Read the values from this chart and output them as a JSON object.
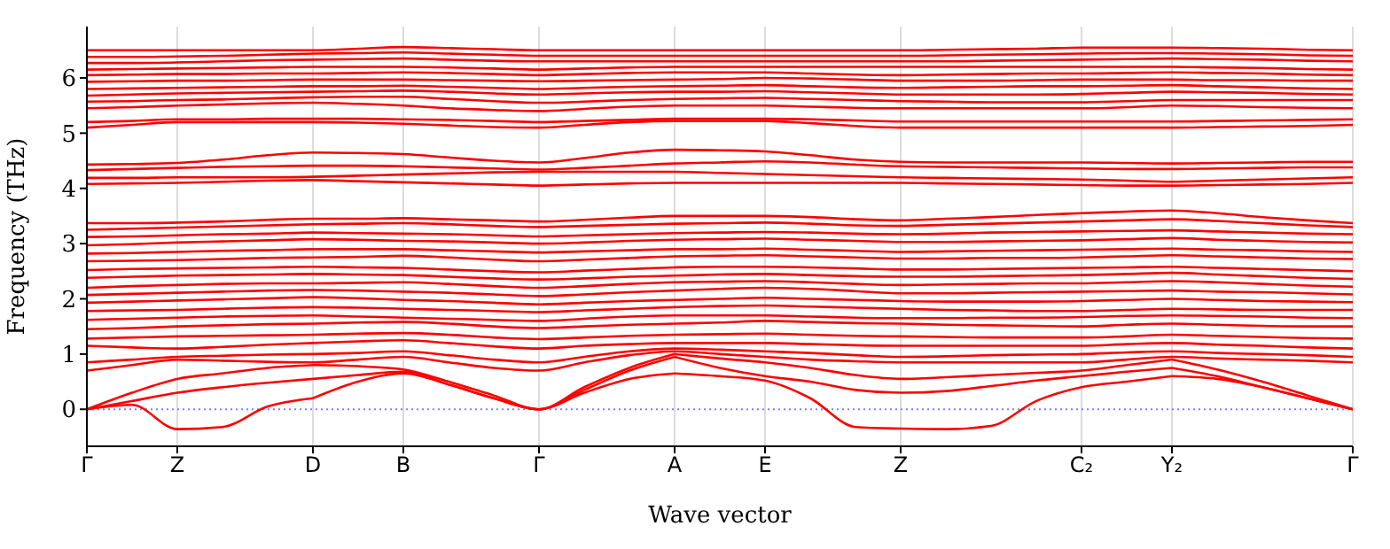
{
  "chart_data": {
    "type": "line",
    "xlabel": "Wave vector",
    "ylabel": "Frequency (THz)",
    "categories": [
      "Γ",
      null,
      "Z",
      null,
      null,
      "D",
      null,
      "B",
      null,
      null,
      "Γ",
      null,
      null,
      "A",
      null,
      "E",
      null,
      null,
      "Z",
      null,
      null,
      null,
      "C₂",
      null,
      "Y₂",
      null,
      null,
      null,
      "Γ"
    ],
    "ylim": [
      -0.67,
      6.93
    ],
    "yticks": [
      0,
      1,
      2,
      3,
      4,
      5,
      6
    ],
    "grid": "x",
    "marker": "none",
    "line_style": "solid",
    "ref_lines": [
      {
        "axis": "y",
        "value": 0,
        "color": "#7f7fff",
        "line_style": "dotted"
      }
    ],
    "series": [
      {
        "color": "#ff0000",
        "values": [
          0,
          0.08,
          -0.36,
          -0.32,
          0.05,
          0.2,
          null,
          null,
          null,
          null,
          null,
          null,
          null,
          null,
          null,
          null,
          null,
          null,
          null,
          null,
          null,
          null,
          null,
          null,
          null,
          null,
          null,
          null,
          null
        ]
      },
      {
        "color": "#ff0000",
        "values": [
          null,
          null,
          null,
          null,
          null,
          0.2,
          0.5,
          0.65,
          0.45,
          0.2,
          0,
          0.3,
          0.55,
          0.65,
          null,
          null,
          null,
          null,
          null,
          null,
          null,
          null,
          null,
          null,
          null,
          null,
          null,
          null,
          null
        ]
      },
      {
        "color": "#ff0000",
        "values": [
          null,
          null,
          null,
          null,
          null,
          null,
          null,
          null,
          null,
          null,
          null,
          null,
          null,
          0.65,
          0.6,
          0.52,
          0.2,
          -0.32,
          -0.35,
          -0.36,
          -0.3,
          0.15,
          0.4,
          0.5,
          0.6,
          null,
          null,
          null,
          null
        ]
      },
      {
        "color": "#ff0000",
        "values": [
          null,
          null,
          null,
          null,
          null,
          null,
          null,
          null,
          null,
          null,
          null,
          null,
          null,
          null,
          null,
          null,
          null,
          null,
          null,
          null,
          null,
          null,
          null,
          null,
          0.6,
          0.55,
          0.4,
          0.2,
          0
        ]
      },
      {
        "color": "#ff0000",
        "values": [
          0,
          0.15,
          0.3,
          0.4,
          0.48,
          0.55,
          null,
          null,
          null,
          null,
          null,
          null,
          null,
          null,
          null,
          null,
          null,
          null,
          null,
          null,
          null,
          null,
          null,
          null,
          null,
          null,
          null,
          null,
          null
        ]
      },
      {
        "color": "#ff0000",
        "values": [
          null,
          null,
          null,
          null,
          null,
          0.55,
          0.62,
          0.68,
          0.45,
          0.2,
          0,
          0.35,
          0.7,
          0.95,
          null,
          null,
          null,
          null,
          null,
          null,
          null,
          null,
          null,
          null,
          null,
          null,
          null,
          null,
          null
        ]
      },
      {
        "color": "#ff0000",
        "values": [
          null,
          null,
          null,
          null,
          null,
          null,
          null,
          null,
          null,
          null,
          null,
          null,
          null,
          0.95,
          0.75,
          0.6,
          0.5,
          0.35,
          0.3,
          0.33,
          0.42,
          0.52,
          0.6,
          0.68,
          0.75,
          null,
          null,
          null,
          null
        ]
      },
      {
        "color": "#ff0000",
        "values": [
          null,
          null,
          null,
          null,
          null,
          null,
          null,
          null,
          null,
          null,
          null,
          null,
          null,
          null,
          null,
          null,
          null,
          null,
          null,
          null,
          null,
          null,
          null,
          null,
          0.75,
          0.6,
          0.4,
          0.2,
          0
        ]
      },
      {
        "color": "#ff0000",
        "values": [
          0,
          0.3,
          0.55,
          0.65,
          0.75,
          0.8,
          null,
          null,
          null,
          null,
          null,
          null,
          null,
          null,
          null,
          null,
          null,
          null,
          null,
          null,
          null,
          null,
          null,
          null,
          null,
          null,
          null,
          null,
          null
        ]
      },
      {
        "color": "#ff0000",
        "values": [
          null,
          null,
          null,
          null,
          null,
          0.8,
          0.78,
          0.72,
          0.5,
          0.25,
          0,
          0.4,
          0.75,
          1.0,
          null,
          null,
          null,
          null,
          null,
          null,
          null,
          null,
          null,
          null,
          null,
          null,
          null,
          null,
          null
        ]
      },
      {
        "color": "#ff0000",
        "values": [
          null,
          null,
          null,
          null,
          null,
          null,
          null,
          null,
          null,
          null,
          null,
          null,
          null,
          1.0,
          0.92,
          0.85,
          0.75,
          0.62,
          0.55,
          0.58,
          0.62,
          0.66,
          0.7,
          0.8,
          0.9,
          null,
          null,
          null,
          null
        ]
      },
      {
        "color": "#ff0000",
        "values": [
          null,
          null,
          null,
          null,
          null,
          null,
          null,
          null,
          null,
          null,
          null,
          null,
          null,
          null,
          null,
          null,
          null,
          null,
          null,
          null,
          null,
          null,
          null,
          null,
          0.9,
          0.72,
          0.5,
          0.25,
          0
        ]
      },
      {
        "color": "#ff0000",
        "values": [
          0.7,
          0.8,
          0.9,
          0.88,
          0.86,
          0.85,
          0.9,
          0.95,
          0.85,
          0.75,
          0.7,
          0.85,
          0.98,
          1.05,
          1.0,
          0.95,
          0.9,
          0.87,
          0.85,
          0.85,
          0.85,
          0.85,
          0.85,
          0.9,
          0.95,
          0.92,
          0.9,
          0.88,
          0.85
        ]
      },
      {
        "color": "#ff0000",
        "values": [
          0.85,
          0.9,
          0.95,
          0.97,
          0.99,
          1.0,
          1.02,
          1.05,
          0.98,
          0.9,
          0.85,
          0.95,
          1.05,
          1.1,
          1.08,
          1.05,
          1.02,
          0.98,
          0.95,
          0.96,
          0.98,
          0.99,
          1.0,
          1.03,
          1.05,
          1.02,
          1.0,
          0.98,
          0.95
        ]
      },
      {
        "color": "#ff0000",
        "values": [
          1.15,
          1.12,
          1.1,
          1.13,
          1.17,
          1.2,
          1.23,
          1.25,
          1.2,
          1.14,
          1.1,
          1.15,
          1.18,
          1.2,
          1.2,
          1.2,
          1.18,
          1.16,
          1.15,
          1.15,
          1.15,
          1.15,
          1.15,
          1.18,
          1.2,
          1.17,
          1.15,
          1.12,
          1.1
        ]
      },
      {
        "color": "#ff0000",
        "values": [
          1.28,
          1.3,
          1.32,
          1.33,
          1.34,
          1.35,
          1.37,
          1.38,
          1.35,
          1.3,
          1.27,
          1.3,
          1.33,
          1.35,
          1.36,
          1.37,
          1.35,
          1.33,
          1.32,
          1.31,
          1.3,
          1.3,
          1.3,
          1.32,
          1.35,
          1.33,
          1.31,
          1.29,
          1.28
        ]
      },
      {
        "color": "#ff0000",
        "values": [
          1.45,
          1.47,
          1.5,
          1.52,
          1.54,
          1.55,
          1.57,
          1.58,
          1.55,
          1.5,
          1.47,
          1.5,
          1.53,
          1.55,
          1.57,
          1.6,
          1.58,
          1.56,
          1.55,
          1.53,
          1.52,
          1.51,
          1.5,
          1.53,
          1.55,
          1.53,
          1.51,
          1.5,
          1.5
        ]
      },
      {
        "color": "#ff0000",
        "values": [
          1.62,
          1.64,
          1.66,
          1.68,
          1.69,
          1.7,
          1.68,
          1.66,
          1.64,
          1.62,
          1.6,
          1.64,
          1.68,
          1.7,
          1.7,
          1.7,
          1.68,
          1.66,
          1.65,
          1.65,
          1.66,
          1.66,
          1.67,
          1.69,
          1.7,
          1.69,
          1.68,
          1.66,
          1.65
        ]
      },
      {
        "color": "#ff0000",
        "values": [
          1.78,
          1.79,
          1.8,
          1.82,
          1.84,
          1.85,
          1.84,
          1.82,
          1.8,
          1.78,
          1.76,
          1.79,
          1.82,
          1.85,
          1.87,
          1.88,
          1.86,
          1.84,
          1.82,
          1.8,
          1.79,
          1.78,
          1.78,
          1.8,
          1.82,
          1.81,
          1.8,
          1.8,
          1.8
        ]
      },
      {
        "color": "#ff0000",
        "values": [
          1.93,
          1.95,
          1.97,
          1.99,
          2.01,
          2.03,
          2.01,
          1.98,
          1.96,
          1.93,
          1.9,
          1.93,
          1.96,
          1.98,
          2.0,
          2.02,
          2.0,
          1.98,
          1.96,
          1.95,
          1.95,
          1.95,
          1.96,
          1.98,
          2.0,
          1.98,
          1.96,
          1.95,
          1.94
        ]
      },
      {
        "color": "#ff0000",
        "values": [
          2.07,
          2.09,
          2.11,
          2.13,
          2.15,
          2.16,
          2.15,
          2.13,
          2.11,
          2.08,
          2.05,
          2.08,
          2.12,
          2.15,
          2.18,
          2.2,
          2.18,
          2.14,
          2.1,
          2.1,
          2.11,
          2.12,
          2.13,
          2.14,
          2.15,
          2.13,
          2.12,
          2.1,
          2.08
        ]
      },
      {
        "color": "#ff0000",
        "values": [
          2.2,
          2.23,
          2.25,
          2.27,
          2.28,
          2.28,
          2.29,
          2.3,
          2.27,
          2.23,
          2.2,
          2.23,
          2.27,
          2.3,
          2.31,
          2.32,
          2.3,
          2.27,
          2.25,
          2.26,
          2.27,
          2.28,
          2.28,
          2.3,
          2.32,
          2.3,
          2.27,
          2.24,
          2.22
        ]
      },
      {
        "color": "#ff0000",
        "values": [
          2.38,
          2.4,
          2.42,
          2.43,
          2.44,
          2.45,
          2.44,
          2.43,
          2.4,
          2.37,
          2.35,
          2.37,
          2.4,
          2.42,
          2.44,
          2.45,
          2.43,
          2.41,
          2.4,
          2.4,
          2.41,
          2.42,
          2.43,
          2.45,
          2.47,
          2.44,
          2.41,
          2.38,
          2.36
        ]
      },
      {
        "color": "#ff0000",
        "values": [
          2.52,
          2.54,
          2.55,
          2.56,
          2.57,
          2.58,
          2.57,
          2.56,
          2.53,
          2.5,
          2.48,
          2.51,
          2.54,
          2.57,
          2.58,
          2.58,
          2.57,
          2.55,
          2.53,
          2.53,
          2.54,
          2.55,
          2.56,
          2.57,
          2.58,
          2.56,
          2.54,
          2.52,
          2.5
        ]
      },
      {
        "color": "#ff0000",
        "values": [
          2.68,
          2.69,
          2.7,
          2.72,
          2.74,
          2.75,
          2.76,
          2.78,
          2.75,
          2.71,
          2.68,
          2.71,
          2.74,
          2.77,
          2.78,
          2.79,
          2.77,
          2.75,
          2.73,
          2.73,
          2.74,
          2.74,
          2.75,
          2.77,
          2.79,
          2.77,
          2.75,
          2.73,
          2.72
        ]
      },
      {
        "color": "#ff0000",
        "values": [
          2.82,
          2.83,
          2.85,
          2.87,
          2.88,
          2.9,
          2.9,
          2.9,
          2.88,
          2.86,
          2.84,
          2.86,
          2.88,
          2.9,
          2.9,
          2.91,
          2.89,
          2.87,
          2.85,
          2.86,
          2.87,
          2.88,
          2.89,
          2.9,
          2.91,
          2.89,
          2.88,
          2.86,
          2.85
        ]
      },
      {
        "color": "#ff0000",
        "values": [
          2.97,
          2.99,
          3.02,
          3.04,
          3.06,
          3.08,
          3.07,
          3.05,
          3.04,
          3.02,
          3.0,
          3.02,
          3.05,
          3.07,
          3.08,
          3.09,
          3.07,
          3.05,
          3.03,
          3.03,
          3.04,
          3.05,
          3.06,
          3.08,
          3.1,
          3.07,
          3.05,
          3.03,
          3.02
        ]
      },
      {
        "color": "#ff0000",
        "values": [
          3.12,
          3.13,
          3.15,
          3.17,
          3.18,
          3.2,
          3.19,
          3.18,
          3.17,
          3.15,
          3.13,
          3.15,
          3.17,
          3.19,
          3.2,
          3.21,
          3.2,
          3.18,
          3.17,
          3.18,
          3.2,
          3.21,
          3.22,
          3.23,
          3.24,
          3.22,
          3.2,
          3.18,
          3.17
        ]
      },
      {
        "color": "#ff0000",
        "values": [
          3.25,
          3.27,
          3.29,
          3.31,
          3.33,
          3.35,
          3.36,
          3.37,
          3.35,
          3.32,
          3.3,
          3.32,
          3.34,
          3.36,
          3.37,
          3.38,
          3.36,
          3.33,
          3.32,
          3.34,
          3.36,
          3.38,
          3.4,
          3.42,
          3.44,
          3.41,
          3.37,
          3.33,
          3.3
        ]
      },
      {
        "color": "#ff0000",
        "values": [
          3.37,
          3.37,
          3.38,
          3.4,
          3.43,
          3.45,
          3.45,
          3.46,
          3.44,
          3.42,
          3.4,
          3.43,
          3.47,
          3.5,
          3.5,
          3.5,
          3.48,
          3.44,
          3.42,
          3.45,
          3.48,
          3.52,
          3.55,
          3.58,
          3.6,
          3.55,
          3.48,
          3.42,
          3.37
        ]
      },
      {
        "color": "#ff0000",
        "values": [
          4.08,
          4.09,
          4.1,
          4.12,
          4.14,
          4.15,
          4.13,
          4.11,
          4.09,
          4.07,
          4.05,
          4.07,
          4.09,
          4.1,
          4.1,
          4.1,
          4.1,
          4.1,
          4.1,
          4.09,
          4.08,
          4.07,
          4.06,
          4.05,
          4.05,
          4.06,
          4.07,
          4.08,
          4.1
        ]
      },
      {
        "color": "#ff0000",
        "values": [
          4.19,
          4.19,
          4.2,
          4.2,
          4.2,
          4.21,
          4.23,
          4.25,
          4.27,
          4.29,
          4.3,
          4.3,
          4.3,
          4.3,
          4.28,
          4.26,
          4.24,
          4.22,
          4.2,
          4.19,
          4.18,
          4.17,
          4.16,
          4.14,
          4.12,
          4.14,
          4.16,
          4.18,
          4.2
        ]
      },
      {
        "color": "#ff0000",
        "values": [
          4.33,
          4.35,
          4.37,
          4.39,
          4.4,
          4.41,
          4.41,
          4.4,
          4.38,
          4.36,
          4.34,
          4.37,
          4.41,
          4.45,
          4.47,
          4.49,
          4.47,
          4.43,
          4.4,
          4.39,
          4.38,
          4.37,
          4.36,
          4.35,
          4.35,
          4.36,
          4.37,
          4.38,
          4.38
        ]
      },
      {
        "color": "#ff0000",
        "values": [
          4.43,
          4.44,
          4.46,
          4.52,
          4.6,
          4.65,
          4.64,
          4.62,
          4.56,
          4.5,
          4.47,
          4.55,
          4.65,
          4.7,
          4.69,
          4.67,
          4.6,
          4.52,
          4.48,
          4.47,
          4.47,
          4.47,
          4.47,
          4.46,
          4.45,
          4.46,
          4.47,
          4.48,
          4.48
        ]
      },
      {
        "color": "#ff0000",
        "values": [
          5.1,
          5.15,
          5.2,
          5.2,
          5.2,
          5.2,
          5.19,
          5.17,
          5.14,
          5.11,
          5.1,
          5.15,
          5.2,
          5.22,
          5.22,
          5.22,
          5.18,
          5.13,
          5.1,
          5.1,
          5.1,
          5.1,
          5.1,
          5.1,
          5.1,
          5.11,
          5.12,
          5.13,
          5.15
        ]
      },
      {
        "color": "#ff0000",
        "values": [
          5.2,
          5.22,
          5.25,
          5.25,
          5.26,
          5.26,
          5.26,
          5.25,
          5.24,
          5.22,
          5.2,
          5.22,
          5.24,
          5.26,
          5.26,
          5.26,
          5.25,
          5.23,
          5.21,
          5.21,
          5.21,
          5.21,
          5.21,
          5.21,
          5.21,
          5.22,
          5.23,
          5.24,
          5.25
        ]
      },
      {
        "color": "#ff0000",
        "values": [
          5.45,
          5.47,
          5.5,
          5.52,
          5.54,
          5.55,
          5.53,
          5.5,
          5.45,
          5.42,
          5.4,
          5.44,
          5.48,
          5.5,
          5.5,
          5.5,
          5.48,
          5.46,
          5.45,
          5.45,
          5.45,
          5.45,
          5.45,
          5.47,
          5.5,
          5.49,
          5.47,
          5.46,
          5.45
        ]
      },
      {
        "color": "#ff0000",
        "values": [
          5.57,
          5.58,
          5.6,
          5.61,
          5.63,
          5.65,
          5.66,
          5.66,
          5.62,
          5.58,
          5.55,
          5.57,
          5.6,
          5.62,
          5.63,
          5.64,
          5.62,
          5.6,
          5.58,
          5.57,
          5.56,
          5.56,
          5.56,
          5.58,
          5.6,
          5.6,
          5.6,
          5.6,
          5.6
        ]
      },
      {
        "color": "#ff0000",
        "values": [
          5.68,
          5.7,
          5.72,
          5.73,
          5.74,
          5.75,
          5.76,
          5.77,
          5.75,
          5.72,
          5.7,
          5.72,
          5.74,
          5.75,
          5.75,
          5.76,
          5.74,
          5.72,
          5.7,
          5.7,
          5.7,
          5.7,
          5.71,
          5.73,
          5.75,
          5.74,
          5.73,
          5.71,
          5.7
        ]
      },
      {
        "color": "#ff0000",
        "values": [
          5.8,
          5.81,
          5.82,
          5.83,
          5.84,
          5.85,
          5.85,
          5.86,
          5.84,
          5.82,
          5.8,
          5.82,
          5.84,
          5.85,
          5.86,
          5.87,
          5.85,
          5.83,
          5.82,
          5.83,
          5.84,
          5.85,
          5.85,
          5.86,
          5.87,
          5.85,
          5.83,
          5.81,
          5.8
        ]
      },
      {
        "color": "#ff0000",
        "values": [
          5.93,
          5.94,
          5.95,
          5.95,
          5.96,
          5.97,
          5.97,
          5.97,
          5.96,
          5.95,
          5.94,
          5.95,
          5.96,
          5.97,
          5.98,
          6.0,
          5.99,
          5.97,
          5.95,
          5.95,
          5.95,
          5.96,
          5.97,
          5.97,
          5.97,
          5.96,
          5.96,
          5.95,
          5.95
        ]
      },
      {
        "color": "#ff0000",
        "values": [
          6.05,
          6.06,
          6.07,
          6.07,
          6.08,
          6.08,
          6.09,
          6.1,
          6.09,
          6.07,
          6.05,
          6.07,
          6.09,
          6.1,
          6.1,
          6.1,
          6.08,
          6.06,
          6.05,
          6.06,
          6.07,
          6.08,
          6.08,
          6.09,
          6.1,
          6.09,
          6.08,
          6.06,
          6.05
        ]
      },
      {
        "color": "#ff0000",
        "values": [
          6.15,
          6.16,
          6.17,
          6.18,
          6.19,
          6.2,
          6.2,
          6.2,
          6.19,
          6.17,
          6.15,
          6.17,
          6.19,
          6.2,
          6.2,
          6.2,
          6.2,
          6.2,
          6.2,
          6.2,
          6.2,
          6.2,
          6.2,
          6.2,
          6.2,
          6.19,
          6.18,
          6.16,
          6.15
        ]
      },
      {
        "color": "#ff0000",
        "values": [
          6.27,
          6.27,
          6.28,
          6.3,
          6.32,
          6.33,
          6.34,
          6.35,
          6.33,
          6.31,
          6.3,
          6.3,
          6.3,
          6.3,
          6.3,
          6.3,
          6.3,
          6.3,
          6.3,
          6.3,
          6.31,
          6.32,
          6.33,
          6.34,
          6.35,
          6.34,
          6.33,
          6.31,
          6.3
        ]
      },
      {
        "color": "#ff0000",
        "values": [
          6.38,
          6.38,
          6.39,
          6.4,
          6.42,
          6.44,
          6.45,
          6.46,
          6.44,
          6.42,
          6.4,
          6.4,
          6.4,
          6.4,
          6.4,
          6.4,
          6.4,
          6.4,
          6.4,
          6.41,
          6.42,
          6.43,
          6.44,
          6.45,
          6.45,
          6.44,
          6.43,
          6.41,
          6.4
        ]
      },
      {
        "color": "#ff0000",
        "values": [
          6.5,
          6.5,
          6.5,
          6.5,
          6.5,
          6.5,
          6.53,
          6.56,
          6.54,
          6.52,
          6.5,
          6.5,
          6.5,
          6.5,
          6.5,
          6.5,
          6.5,
          6.5,
          6.5,
          6.51,
          6.52,
          6.53,
          6.55,
          6.55,
          6.55,
          6.54,
          6.53,
          6.51,
          6.5
        ]
      }
    ]
  }
}
